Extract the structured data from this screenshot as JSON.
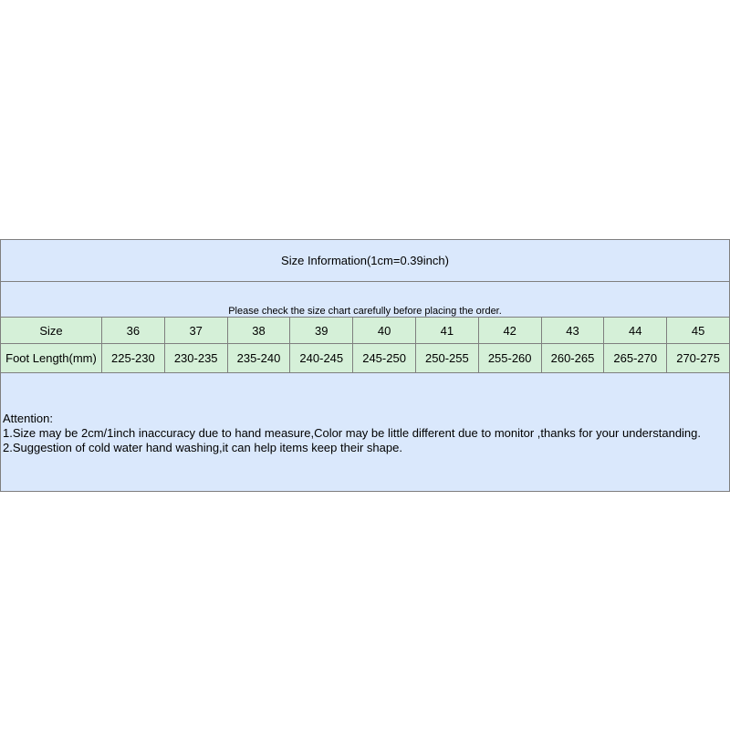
{
  "title": "Size Information(1cm=0.39inch)",
  "notice": "Please check the size chart carefully before placing the order.",
  "table": {
    "size_label": "Size",
    "length_label": "Foot Length(mm)",
    "sizes": [
      "36",
      "37",
      "38",
      "39",
      "40",
      "41",
      "42",
      "43",
      "44",
      "45"
    ],
    "lengths": [
      "225-230",
      "230-235",
      "235-240",
      "240-245",
      "245-250",
      "250-255",
      "255-260",
      "260-265",
      "265-270",
      "270-275"
    ]
  },
  "attention": {
    "heading": "Attention:",
    "lines": [
      "1.Size may be 2cm/1inch inaccuracy due to hand measure,Color may be little different due to monitor ,thanks for your understanding.",
      "2.Suggestion of cold water hand washing,it can help items keep their shape."
    ]
  },
  "colors": {
    "header_bg": "#dae8fc",
    "table_bg": "#d5f0d8",
    "border": "#7f7f7f"
  }
}
